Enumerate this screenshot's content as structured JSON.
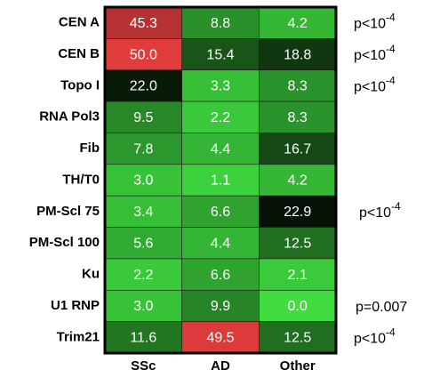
{
  "chart_data": {
    "type": "heatmap",
    "rows": [
      "CEN A",
      "CEN B",
      "Topo I",
      "RNA Pol3",
      "Fib",
      "TH/T0",
      "PM-Scl 75",
      "PM-Scl 100",
      "Ku",
      "U1 RNP",
      "Trim21"
    ],
    "columns": [
      "SSc",
      "AD",
      "Other"
    ],
    "values": [
      [
        45.3,
        8.8,
        4.2
      ],
      [
        50.0,
        15.4,
        18.8
      ],
      [
        22.0,
        3.3,
        8.3
      ],
      [
        9.5,
        2.2,
        8.3
      ],
      [
        7.8,
        4.4,
        16.7
      ],
      [
        3.0,
        1.1,
        4.2
      ],
      [
        3.4,
        6.6,
        22.9
      ],
      [
        5.6,
        4.4,
        12.5
      ],
      [
        2.2,
        6.6,
        2.1
      ],
      [
        3.0,
        9.9,
        0.0
      ],
      [
        11.6,
        49.5,
        12.5
      ]
    ],
    "value_labels": [
      [
        "45.3",
        "8.8",
        "4.2"
      ],
      [
        "50.0",
        "15.4",
        "18.8"
      ],
      [
        "22.0",
        "3.3",
        "8.3"
      ],
      [
        "9.5",
        "2.2",
        "8.3"
      ],
      [
        "7.8",
        "4.4",
        "16.7"
      ],
      [
        "3.0",
        "1.1",
        "4.2"
      ],
      [
        "3.4",
        "6.6",
        "22.9"
      ],
      [
        "5.6",
        "4.4",
        "12.5"
      ],
      [
        "2.2",
        "6.6",
        "2.1"
      ],
      [
        "3.0",
        "9.9",
        "0.0"
      ],
      [
        "11.6",
        "49.5",
        "12.5"
      ]
    ],
    "colorscale": [
      "#40dc40",
      "#000000",
      "#e03c3c"
    ],
    "clim": [
      0,
      50
    ],
    "row_annotations": [
      {
        "base": "p<10",
        "exponent": "-4"
      },
      {
        "base": "p<10",
        "exponent": "-4"
      },
      {
        "base": "p<10",
        "exponent": "-4"
      },
      null,
      null,
      null,
      {
        "base": "p<10",
        "exponent": "-4"
      },
      null,
      null,
      {
        "base": "p=0.007"
      },
      {
        "base": "p<10",
        "exponent": "-4"
      }
    ]
  }
}
